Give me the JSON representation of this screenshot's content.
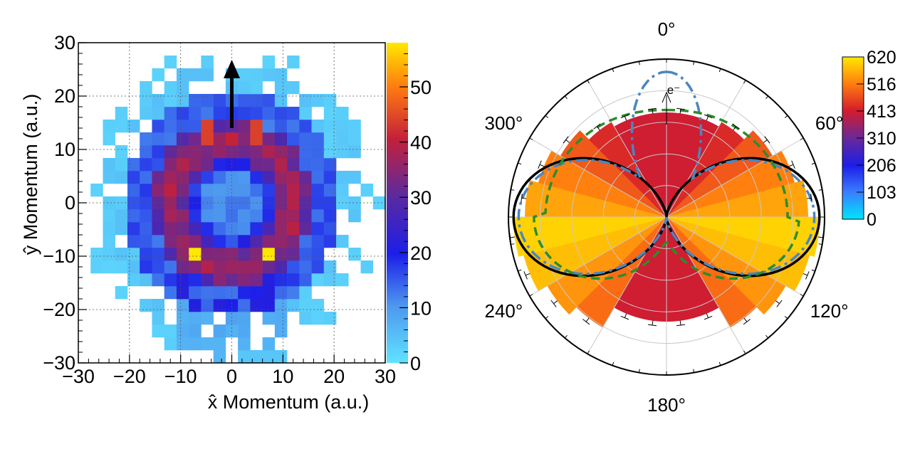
{
  "chart_data": [
    {
      "type": "heatmap",
      "xlabel": "x̂ Momentum (a.u.)",
      "ylabel": "ŷ Momentum (a.u.)",
      "xlim": [
        -30,
        30
      ],
      "ylim": [
        -30,
        30
      ],
      "xticks": [
        -30,
        -20,
        -10,
        0,
        10,
        20,
        30
      ],
      "yticks": [
        -30,
        -20,
        -10,
        0,
        10,
        20,
        30
      ],
      "xtick_labels": [
        "−30",
        "−20",
        "−10",
        "0",
        "10",
        "20",
        "30"
      ],
      "ytick_labels": [
        "−30",
        "−20",
        "−10",
        "0",
        "10",
        "20",
        "30"
      ],
      "grid": true,
      "bin_width": 2.4,
      "colorbar": {
        "range": [
          0,
          58
        ],
        "ticks": [
          0,
          10,
          20,
          30,
          40,
          50
        ],
        "tick_labels": [
          "0",
          "10",
          "20",
          "30",
          "40",
          "50"
        ]
      },
      "annotations": [
        {
          "type": "arrow",
          "from": [
            0,
            14
          ],
          "to": [
            0,
            28
          ]
        }
      ],
      "hot_spots": [
        {
          "x": -7.2,
          "y": -9.6,
          "value": 58
        },
        {
          "x": 7.2,
          "y": -9.6,
          "value": 58
        },
        {
          "x": -5,
          "y": 13,
          "value": 44
        },
        {
          "x": 5,
          "y": 13,
          "value": 44
        }
      ]
    },
    {
      "type": "polar",
      "angle_labels": [
        "0°",
        "60°",
        "120°",
        "180°",
        "240°",
        "300°"
      ],
      "radial_max": 620,
      "colorbar": {
        "range": [
          0,
          620
        ],
        "tick_labels": [
          "0",
          "103",
          "206",
          "310",
          "413",
          "516",
          "620"
        ]
      },
      "arrow_label": "e⁻",
      "sectors": [
        {
          "a0": 0,
          "a1": 15,
          "r": 410
        },
        {
          "a0": 15,
          "a1": 30,
          "r": 410
        },
        {
          "a0": 30,
          "a1": 45,
          "r": 430
        },
        {
          "a0": 45,
          "a1": 60,
          "r": 480
        },
        {
          "a0": 60,
          "a1": 75,
          "r": 520
        },
        {
          "a0": 75,
          "a1": 90,
          "r": 555
        },
        {
          "a0": 90,
          "a1": 105,
          "r": 600
        },
        {
          "a0": 105,
          "a1": 120,
          "r": 580
        },
        {
          "a0": 120,
          "a1": 135,
          "r": 540
        },
        {
          "a0": 135,
          "a1": 150,
          "r": 500
        },
        {
          "a0": 150,
          "a1": 165,
          "r": 410
        },
        {
          "a0": 165,
          "a1": 180,
          "r": 410
        },
        {
          "a0": 180,
          "a1": 195,
          "r": 410
        },
        {
          "a0": 195,
          "a1": 210,
          "r": 410
        },
        {
          "a0": 210,
          "a1": 225,
          "r": 500
        },
        {
          "a0": 225,
          "a1": 240,
          "r": 540
        },
        {
          "a0": 240,
          "a1": 255,
          "r": 580
        },
        {
          "a0": 255,
          "a1": 270,
          "r": 600
        },
        {
          "a0": 270,
          "a1": 285,
          "r": 555
        },
        {
          "a0": 285,
          "a1": 300,
          "r": 520
        },
        {
          "a0": 300,
          "a1": 315,
          "r": 480
        },
        {
          "a0": 315,
          "a1": 330,
          "r": 430
        },
        {
          "a0": 330,
          "a1": 345,
          "r": 410
        },
        {
          "a0": 345,
          "a1": 360,
          "r": 410
        }
      ],
      "curves": [
        {
          "style": "solid",
          "color": "#000000",
          "shape": "sin2",
          "amplitude": 600
        },
        {
          "style": "dashdot",
          "color": "#4a86c0",
          "shape": "sin2_plus_top_lobe",
          "amplitude": 580,
          "top_lobe": 570
        },
        {
          "style": "dashed",
          "color": "#2e8b2e",
          "shape": "bulb",
          "top": 420,
          "bottom": 100
        }
      ]
    }
  ]
}
